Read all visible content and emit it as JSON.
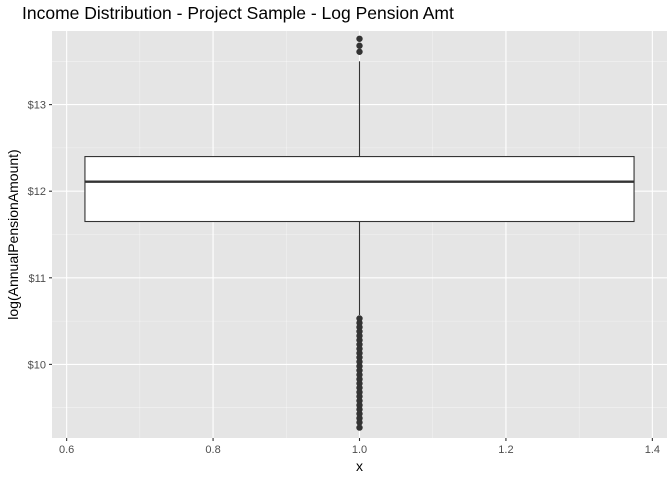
{
  "chart_data": {
    "type": "boxplot",
    "title": "Income Distribution - Project Sample - Log Pension Amt",
    "xlabel": "x",
    "ylabel": "log(AnnualPensionAmount)",
    "xlim": [
      0.58,
      1.42
    ],
    "ylim": [
      9.15,
      13.85
    ],
    "x_ticks": [
      {
        "value": 0.6,
        "label": "0.6"
      },
      {
        "value": 0.8,
        "label": "0.8"
      },
      {
        "value": 1.0,
        "label": "1.0"
      },
      {
        "value": 1.2,
        "label": "1.2"
      },
      {
        "value": 1.4,
        "label": "1.4"
      }
    ],
    "y_ticks": [
      {
        "value": 10,
        "label": "$10"
      },
      {
        "value": 11,
        "label": "$11"
      },
      {
        "value": 12,
        "label": "$12"
      },
      {
        "value": 13,
        "label": "$13"
      }
    ],
    "grid": true,
    "box": {
      "x": 1.0,
      "width": 0.75,
      "q1": 11.65,
      "median": 12.11,
      "q3": 12.4,
      "whisker_low": 10.57,
      "whisker_high": 13.5
    },
    "outliers": [
      13.76,
      13.68,
      13.61,
      10.53,
      10.48,
      10.43,
      10.38,
      10.33,
      10.28,
      10.23,
      10.18,
      10.13,
      10.08,
      10.03,
      9.98,
      9.93,
      9.88,
      9.83,
      9.78,
      9.73,
      9.68,
      9.63,
      9.58,
      9.53,
      9.48,
      9.43,
      9.38,
      9.33,
      9.27
    ],
    "colors": {
      "panel": "#e5e5e5",
      "grid_major": "#ffffff",
      "box_fill": "#ffffff",
      "box_line": "#333333",
      "point": "#333333"
    }
  }
}
